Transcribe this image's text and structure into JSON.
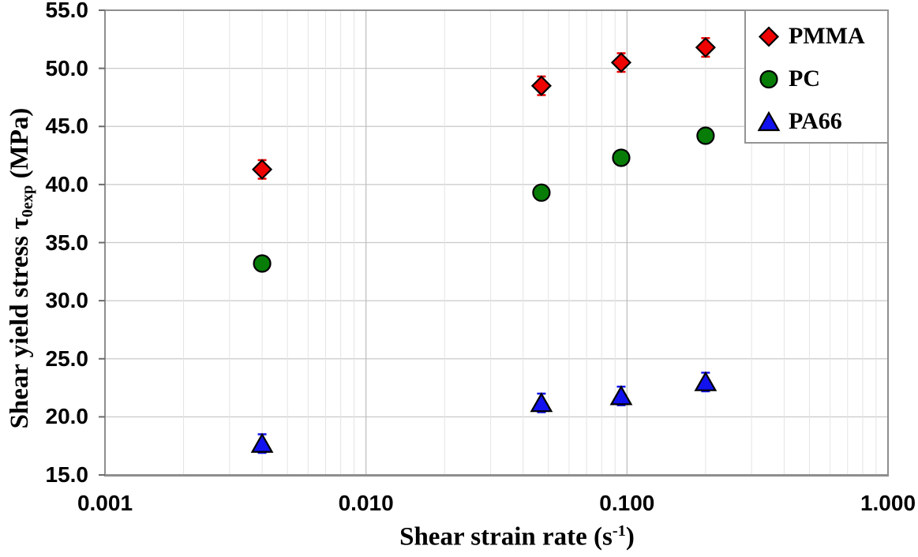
{
  "figure": {
    "background": "#ffffff",
    "border_color": "#8e8e8e",
    "grid_major_color": "#c9c9c9",
    "grid_minor_color": "#e4e4e4"
  },
  "labels": {
    "y_title_prefix": "Shear yield stress ",
    "y_title_symbol": "τ",
    "y_title_sub": "0exp",
    "y_title_suffix": " (MPa)",
    "x_title_prefix": "Shear strain rate (s",
    "x_title_sup": "-1",
    "x_title_suffix": ")"
  },
  "chart_data": {
    "type": "scatter",
    "title": "",
    "xlabel": "Shear strain rate (s^-1)",
    "ylabel": "Shear yield stress τ0exp (MPa)",
    "x_scale": "log",
    "xlim": [
      0.001,
      1.0
    ],
    "ylim": [
      15.0,
      55.0
    ],
    "grid": {
      "horizontal_major": true,
      "vertical_major": true,
      "vertical_minor_log": true
    },
    "legend_position": "top-right",
    "xticks": {
      "values": [
        0.001,
        0.01,
        0.1,
        1.0
      ],
      "labels": [
        "0.001",
        "0.010",
        "0.100",
        "1.000"
      ]
    },
    "yticks": {
      "values": [
        55,
        50,
        45,
        40,
        35,
        30,
        25,
        20,
        15
      ],
      "labels": [
        "55.0",
        "50.0",
        "45.0",
        "40.0",
        "35.0",
        "30.0",
        "25.0",
        "20.0",
        "15.0"
      ]
    },
    "series": [
      {
        "name": "PMMA",
        "marker": "diamond",
        "color": "#ee0202",
        "error": 0.8,
        "x": [
          0.004,
          0.047,
          0.095,
          0.2
        ],
        "y": [
          41.3,
          48.5,
          50.5,
          51.8
        ]
      },
      {
        "name": "PC",
        "marker": "circle",
        "color": "#077d07",
        "error": 0.5,
        "x": [
          0.004,
          0.047,
          0.095,
          0.2
        ],
        "y": [
          33.2,
          39.3,
          42.3,
          44.2
        ]
      },
      {
        "name": "PA66",
        "marker": "triangle",
        "color": "#1212ee",
        "error": 0.8,
        "x": [
          0.004,
          0.047,
          0.095,
          0.2
        ],
        "y": [
          17.7,
          21.2,
          21.8,
          23.0
        ]
      }
    ]
  }
}
